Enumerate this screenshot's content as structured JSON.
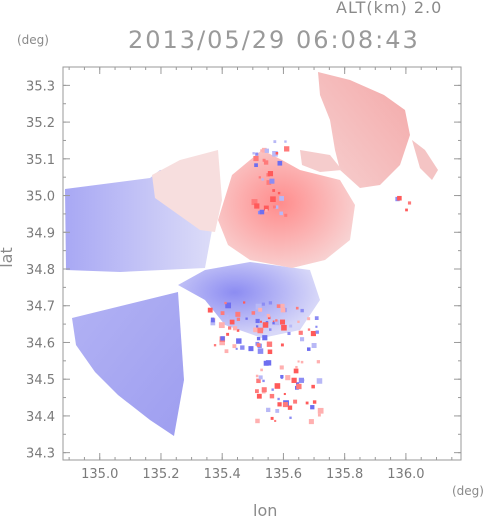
{
  "header": {
    "altitude_label": "ALT(km) 2.0",
    "timestamp": "2013/05/29 06:08:43"
  },
  "chart_data": {
    "type": "heatmap",
    "title": "2013/05/29 06:08:43",
    "subtitle": "ALT(km) 2.0",
    "xlabel": "lon",
    "ylabel": "lat",
    "x_unit": "(deg)",
    "y_unit": "(deg)",
    "xlim": [
      134.88,
      136.18
    ],
    "ylim": [
      34.28,
      35.35
    ],
    "x_ticks": [
      "135.0",
      "135.2",
      "135.4",
      "135.6",
      "135.8",
      "136.0"
    ],
    "x_tick_values": [
      135.0,
      135.2,
      135.4,
      135.6,
      135.8,
      136.0
    ],
    "y_ticks": [
      "34.3",
      "34.4",
      "34.5",
      "34.6",
      "34.7",
      "34.8",
      "34.9",
      "35.0",
      "35.1",
      "35.2",
      "35.3"
    ],
    "y_tick_values": [
      34.3,
      34.4,
      34.5,
      34.6,
      34.7,
      34.8,
      34.9,
      35.0,
      35.1,
      35.2,
      35.3
    ],
    "colormap": {
      "negative": "#7b7bff",
      "zero": "#ffffff",
      "positive": "#ff6b6b"
    },
    "grid": false
  }
}
